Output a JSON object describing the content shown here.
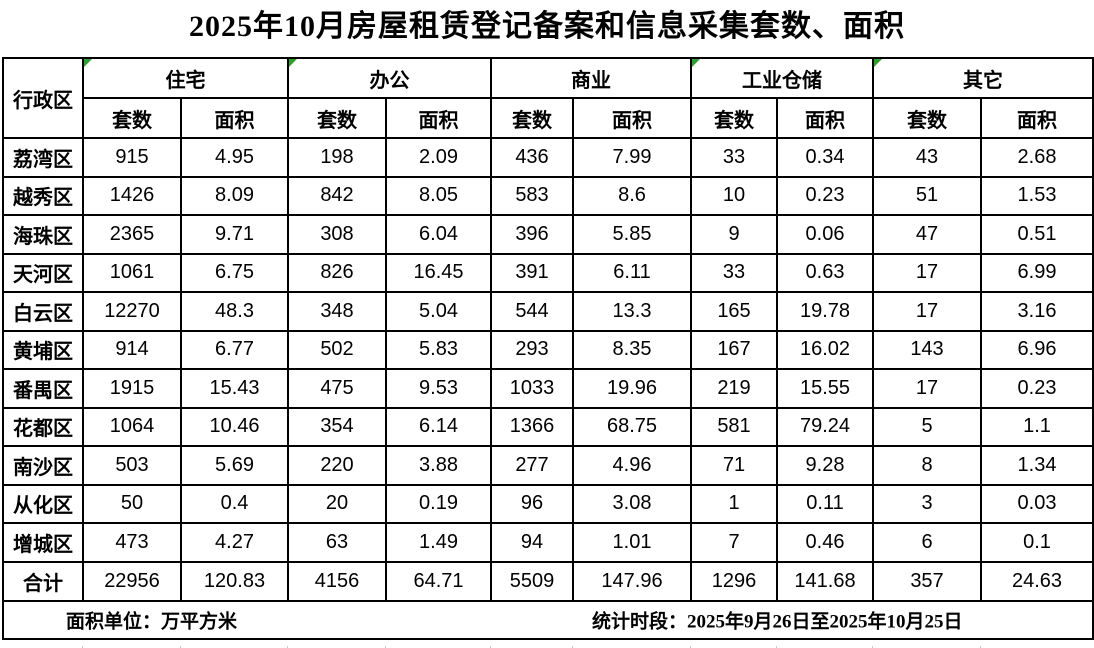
{
  "title": "2025年10月房屋租赁登记备案和信息采集套数、面积",
  "table": {
    "corner_header": "行政区",
    "groups": [
      {
        "label": "住宅",
        "flagged": true
      },
      {
        "label": "办公",
        "flagged": true
      },
      {
        "label": "商业",
        "flagged": false
      },
      {
        "label": "工业仓储",
        "flagged": true
      },
      {
        "label": "其它",
        "flagged": true
      }
    ],
    "subheaders": {
      "count": "套数",
      "area": "面积"
    },
    "rows": [
      {
        "district": "荔湾区",
        "values": [
          "915",
          "4.95",
          "198",
          "2.09",
          "436",
          "7.99",
          "33",
          "0.34",
          "43",
          "2.68"
        ]
      },
      {
        "district": "越秀区",
        "values": [
          "1426",
          "8.09",
          "842",
          "8.05",
          "583",
          "8.6",
          "10",
          "0.23",
          "51",
          "1.53"
        ]
      },
      {
        "district": "海珠区",
        "values": [
          "2365",
          "9.71",
          "308",
          "6.04",
          "396",
          "5.85",
          "9",
          "0.06",
          "47",
          "0.51"
        ]
      },
      {
        "district": "天河区",
        "values": [
          "1061",
          "6.75",
          "826",
          "16.45",
          "391",
          "6.11",
          "33",
          "0.63",
          "17",
          "6.99"
        ]
      },
      {
        "district": "白云区",
        "values": [
          "12270",
          "48.3",
          "348",
          "5.04",
          "544",
          "13.3",
          "165",
          "19.78",
          "17",
          "3.16"
        ]
      },
      {
        "district": "黄埔区",
        "values": [
          "914",
          "6.77",
          "502",
          "5.83",
          "293",
          "8.35",
          "167",
          "16.02",
          "143",
          "6.96"
        ]
      },
      {
        "district": "番禺区",
        "values": [
          "1915",
          "15.43",
          "475",
          "9.53",
          "1033",
          "19.96",
          "219",
          "15.55",
          "17",
          "0.23"
        ]
      },
      {
        "district": "花都区",
        "values": [
          "1064",
          "10.46",
          "354",
          "6.14",
          "1366",
          "68.75",
          "581",
          "79.24",
          "5",
          "1.1"
        ]
      },
      {
        "district": "南沙区",
        "values": [
          "503",
          "5.69",
          "220",
          "3.88",
          "277",
          "4.96",
          "71",
          "9.28",
          "8",
          "1.34"
        ]
      },
      {
        "district": "从化区",
        "values": [
          "50",
          "0.4",
          "20",
          "0.19",
          "96",
          "3.08",
          "1",
          "0.11",
          "3",
          "0.03"
        ]
      },
      {
        "district": "增城区",
        "values": [
          "473",
          "4.27",
          "63",
          "1.49",
          "94",
          "1.01",
          "7",
          "0.46",
          "6",
          "0.1"
        ]
      }
    ],
    "total_row": {
      "district": "合计",
      "values": [
        "22956",
        "120.83",
        "4156",
        "64.71",
        "5509",
        "147.96",
        "1296",
        "141.68",
        "357",
        "24.63"
      ]
    }
  },
  "footer": {
    "left": "面积单位：万平方米",
    "right": "统计时段：2025年9月26日至2025年10月25日"
  },
  "colors": {
    "flag_green": "#2f9e2f",
    "border_black": "#000000",
    "gridline_gray": "#c9c9c9",
    "background": "#ffffff",
    "text": "#000000"
  }
}
